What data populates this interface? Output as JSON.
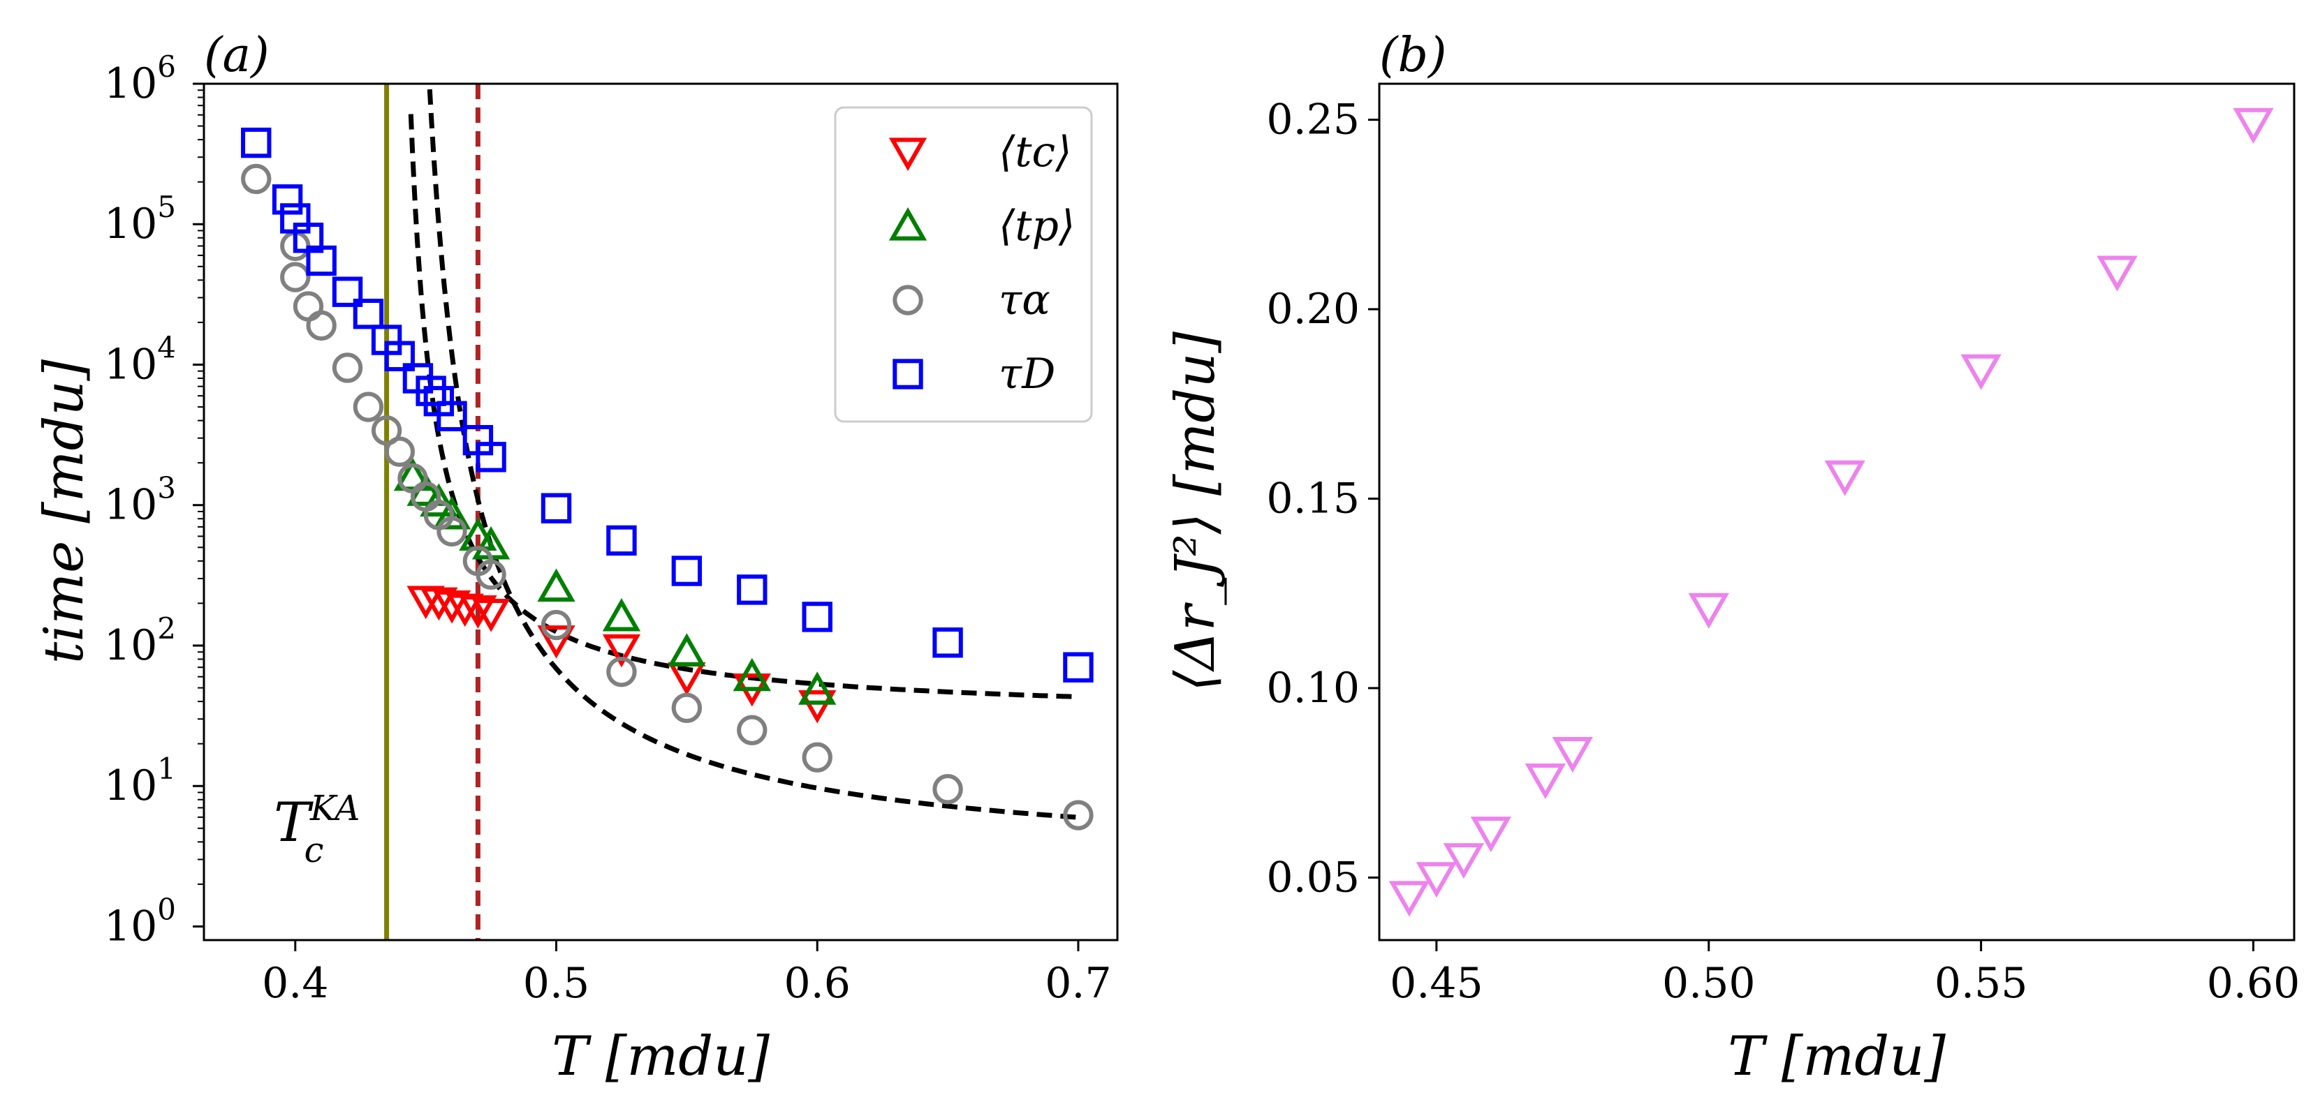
{
  "chart_data": [
    {
      "panel": "(a)",
      "type": "scatter",
      "xlabel": "T [mdu]",
      "ylabel": "time [mdu]",
      "yscale": "log",
      "xlim": [
        0.365,
        0.715
      ],
      "ylim": [
        0.8,
        1000000
      ],
      "xticks": [
        "0.4",
        "0.5",
        "0.6",
        "0.7"
      ],
      "yticks": [
        {
          "base": "10",
          "exp": "0"
        },
        {
          "base": "10",
          "exp": "1"
        },
        {
          "base": "10",
          "exp": "2"
        },
        {
          "base": "10",
          "exp": "3"
        },
        {
          "base": "10",
          "exp": "4"
        },
        {
          "base": "10",
          "exp": "5"
        },
        {
          "base": "10",
          "exp": "6"
        }
      ],
      "legend_position": "top-right",
      "annotation": {
        "text": "T",
        "sup": "KA",
        "sub": "c"
      },
      "vlines": [
        {
          "x": 0.435,
          "color": "#808000",
          "style": "solid"
        },
        {
          "x": 0.47,
          "color": "#b22222",
          "style": "dashed"
        }
      ],
      "series": [
        {
          "name": "⟨t_c⟩",
          "legend": "⟨tc⟩",
          "marker": "triangle-down",
          "color": "#ff0000",
          "x": [
            0.45,
            0.455,
            0.46,
            0.465,
            0.47,
            0.475,
            0.5,
            0.525,
            0.55,
            0.575,
            0.6
          ],
          "y": [
            210,
            205,
            195,
            185,
            180,
            170,
            110,
            95,
            60,
            50,
            38
          ]
        },
        {
          "name": "⟨t_p⟩",
          "legend": "⟨tp⟩",
          "marker": "triangle-up",
          "color": "#008000",
          "x": [
            0.445,
            0.45,
            0.455,
            0.46,
            0.47,
            0.475,
            0.5,
            0.525,
            0.55,
            0.575,
            0.6
          ],
          "y": [
            1600,
            1250,
            1050,
            850,
            600,
            520,
            260,
            160,
            90,
            60,
            48
          ]
        },
        {
          "name": "τ_α",
          "legend": "τα",
          "marker": "circle",
          "color": "#808080",
          "x": [
            0.385,
            0.4,
            0.4,
            0.405,
            0.41,
            0.42,
            0.428,
            0.435,
            0.44,
            0.445,
            0.45,
            0.455,
            0.46,
            0.47,
            0.475,
            0.5,
            0.525,
            0.55,
            0.575,
            0.6,
            0.65,
            0.7
          ],
          "y": [
            210000,
            70000,
            42000,
            26000,
            19000,
            9500,
            5000,
            3400,
            2400,
            1550,
            1150,
            850,
            650,
            400,
            320,
            140,
            65,
            36,
            25,
            16,
            9.5,
            6.2
          ]
        },
        {
          "name": "τ_D",
          "legend": "τD",
          "marker": "square",
          "color": "#0000ff",
          "x": [
            0.385,
            0.397,
            0.4,
            0.405,
            0.41,
            0.42,
            0.428,
            0.435,
            0.44,
            0.447,
            0.452,
            0.455,
            0.46,
            0.47,
            0.475,
            0.5,
            0.525,
            0.55,
            0.575,
            0.6,
            0.65,
            0.7
          ],
          "y": [
            380000,
            150000,
            110000,
            80000,
            55000,
            33000,
            23000,
            15000,
            11500,
            8000,
            6500,
            5500,
            4300,
            2900,
            2200,
            950,
            560,
            340,
            250,
            160,
            105,
            70
          ]
        }
      ],
      "fits": [
        {
          "name": "fit τD",
          "color": "#000000",
          "style": "dashed",
          "A": 80,
          "B": 0.265,
          "Tc": 0.435,
          "x_range": [
            0.436,
            0.7
          ]
        },
        {
          "name": "fit τα",
          "color": "#000000",
          "style": "dashed",
          "A": 80,
          "B": 0.38,
          "Tc": 0.435,
          "x_range": [
            0.436,
            0.7
          ]
        }
      ]
    },
    {
      "panel": "(b)",
      "type": "scatter",
      "xlabel": "T [mdu]",
      "ylabel": "⟨Δr_J²⟩ [mdu]",
      "xlim": [
        0.4395,
        0.6075
      ],
      "ylim": [
        0.0335,
        0.2595
      ],
      "xticks": [
        "0.45",
        "0.50",
        "0.55",
        "0.60"
      ],
      "yticks": [
        "0.05",
        "0.10",
        "0.15",
        "0.20",
        "0.25"
      ],
      "series": [
        {
          "name": "⟨Δr_J²⟩",
          "marker": "triangle-down",
          "color": "#ee82ee",
          "x": [
            0.445,
            0.45,
            0.455,
            0.46,
            0.47,
            0.475,
            0.5,
            0.525,
            0.55,
            0.575,
            0.6
          ],
          "y": [
            0.045,
            0.05,
            0.055,
            0.062,
            0.076,
            0.083,
            0.121,
            0.156,
            0.184,
            0.21,
            0.249
          ]
        }
      ]
    }
  ]
}
